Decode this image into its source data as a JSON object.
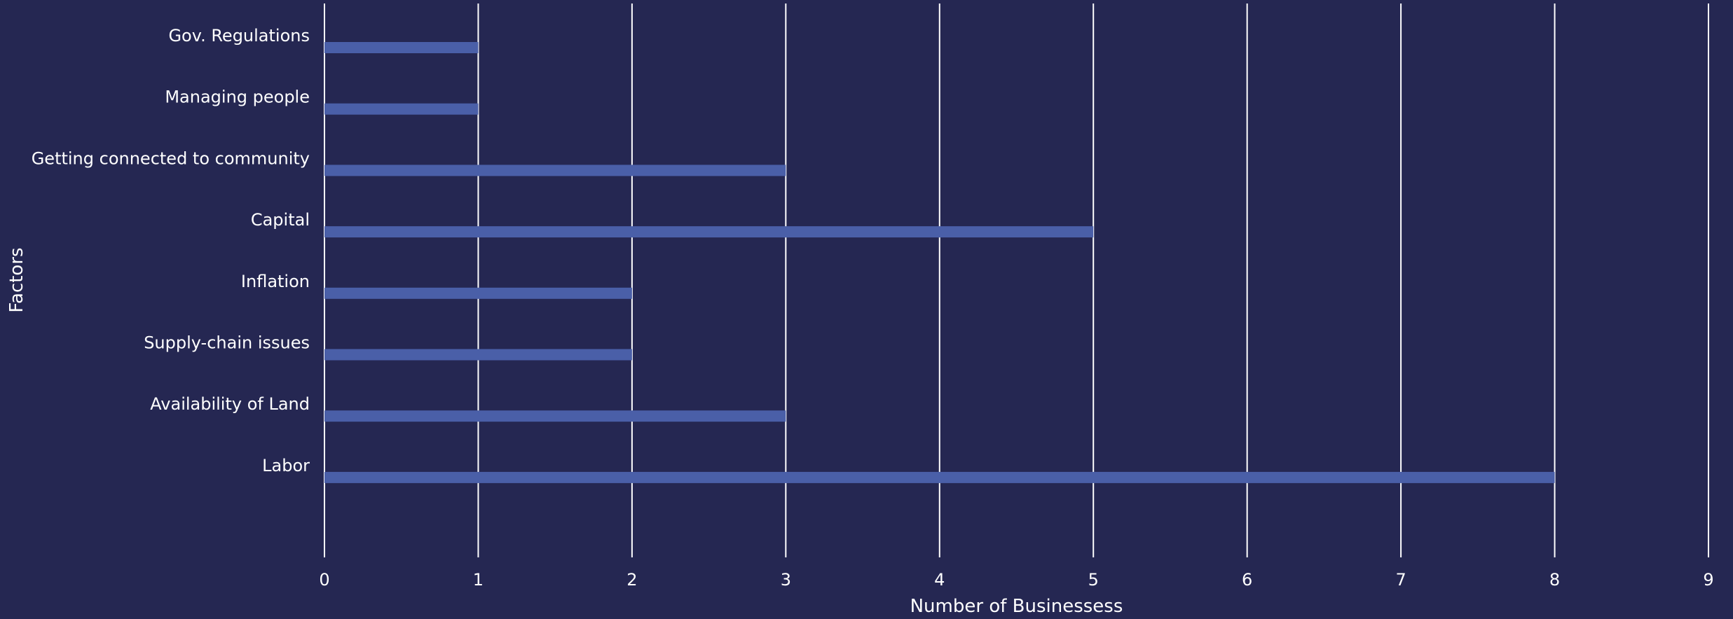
{
  "chart_data": {
    "type": "bar",
    "orientation": "horizontal",
    "categories": [
      "Gov. Regulations",
      "Managing people",
      "Getting connected to community",
      "Capital",
      "Inflation",
      "Supply-chain issues",
      "Availability of Land",
      "Labor"
    ],
    "values": [
      1,
      1,
      3,
      5,
      2,
      2,
      3,
      8
    ],
    "xlabel": "Number of Businessess",
    "ylabel": "Factors",
    "xlim": [
      0,
      9
    ],
    "xticks": [
      "0",
      "1",
      "2",
      "3",
      "4",
      "5",
      "6",
      "7",
      "8",
      "9"
    ],
    "grid": "vertical",
    "colors": {
      "background": "#252752",
      "bar": "#4a5fa8",
      "grid": "#ffffff",
      "text": "#ffffff"
    }
  }
}
